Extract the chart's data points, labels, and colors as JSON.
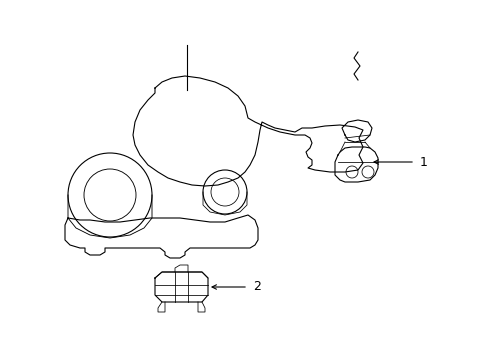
{
  "background_color": "#ffffff",
  "line_color": "#000000",
  "lw": 0.8,
  "figsize": [
    4.89,
    3.6
  ],
  "dpi": 100
}
